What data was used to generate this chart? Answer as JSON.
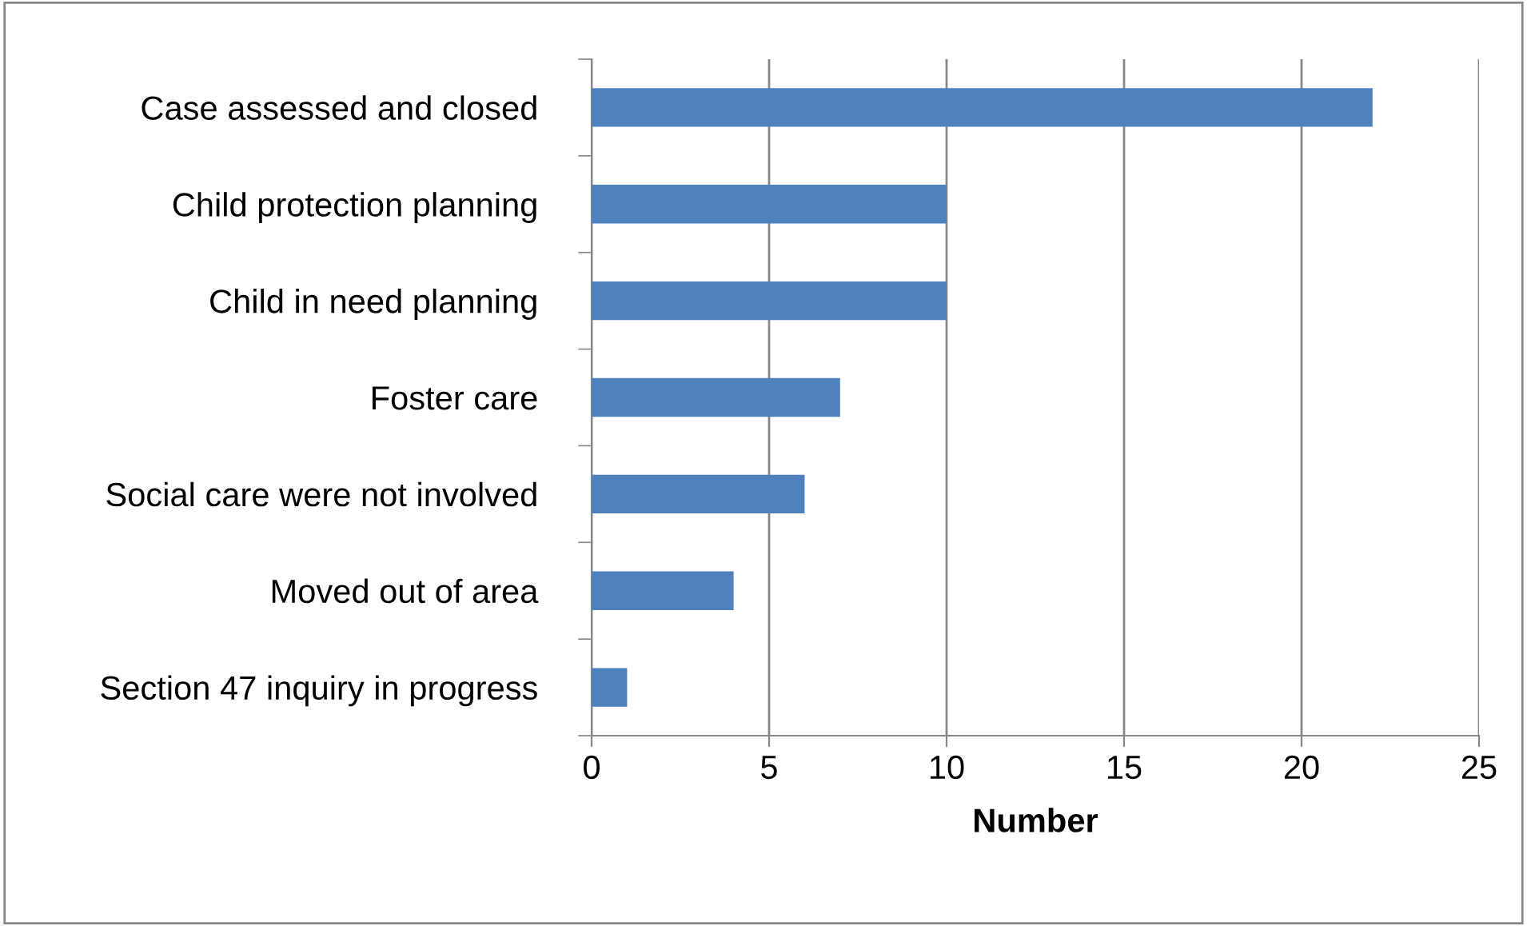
{
  "chart_data": {
    "type": "bar",
    "orientation": "horizontal",
    "xlabel": "Number",
    "categories": [
      "Case assessed and closed",
      "Child protection planning",
      "Child in need planning",
      "Foster care",
      "Social care were not involved",
      "Moved out of area",
      "Section 47 inquiry in progress"
    ],
    "values": [
      22,
      10,
      10,
      7,
      6,
      4,
      1
    ],
    "color": "#4f81bd",
    "xlim": [
      0,
      25
    ],
    "xticks": [
      0,
      5,
      10,
      15,
      20,
      25
    ],
    "grid": "x",
    "legend": false
  }
}
